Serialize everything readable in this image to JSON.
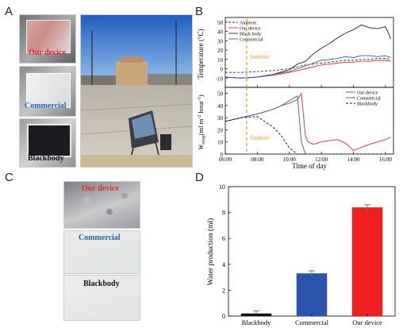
{
  "panels": {
    "a": "A",
    "b": "B",
    "c": "C",
    "d": "D"
  },
  "photos_a": [
    {
      "label": "Our device",
      "color": "#e8262a"
    },
    {
      "label": "Commercial",
      "color": "#2a5bb5"
    },
    {
      "label": "Blackbody",
      "color": "#111111"
    }
  ],
  "photos_c": [
    {
      "label": "Our device",
      "color": "#e8262a"
    },
    {
      "label": "Commercial",
      "color": "#2a5bb5"
    },
    {
      "label": "Blackbody",
      "color": "#111111"
    }
  ],
  "chart_data": [
    {
      "type": "line",
      "panel": "B-top",
      "ylabel": "Temperature (°C)",
      "ylim": [
        -20,
        55
      ],
      "yticks": [
        "-10",
        "0",
        "10",
        "20",
        "30",
        "40",
        "50"
      ],
      "sunrise_label": "Sunrise",
      "sunrise_x": "07:20",
      "x": [
        "06:00",
        "07:00",
        "08:00",
        "09:00",
        "10:00",
        "10:30",
        "11:00",
        "11:30",
        "12:00",
        "12:30",
        "13:00",
        "13:30",
        "14:00",
        "14:30",
        "15:00",
        "15:30",
        "16:00",
        "16:20"
      ],
      "series": [
        {
          "name": "Ambient",
          "color": "#333333",
          "dash": "3,2",
          "values": [
            -4,
            -4,
            -3,
            -2,
            0,
            2,
            4,
            5,
            6,
            7,
            8,
            9,
            9,
            10,
            10,
            11,
            11,
            10
          ]
        },
        {
          "name": "Our device",
          "color": "#e8262a",
          "values": [
            -9,
            -10,
            -9,
            -7,
            -4,
            -2,
            0,
            2,
            4,
            5,
            6,
            7,
            7,
            8,
            8,
            9,
            9,
            8
          ]
        },
        {
          "name": "Black body",
          "color": "#222222",
          "values": [
            -9,
            -10,
            -9,
            -6,
            -1,
            5,
            8,
            16,
            22,
            27,
            33,
            38,
            42,
            47,
            44,
            43,
            45,
            32
          ]
        },
        {
          "name": "Commercial",
          "color": "#2a5bb5",
          "values": [
            -9,
            -10,
            -9,
            -6,
            -3,
            0,
            3,
            6,
            9,
            10,
            11,
            13,
            12,
            14,
            14,
            13,
            14,
            12
          ]
        }
      ]
    },
    {
      "type": "line",
      "panel": "B-bottom",
      "ylabel": "W",
      "ylabel_sub": "evap",
      "ylabel_tail": "(ml m",
      "ylabel_sup": "-2",
      "ylabel_end": " hour",
      "ylabel_sup2": "-1",
      "ylabel_close": ")",
      "xlabel": "Time of day",
      "ylim": [
        0,
        55
      ],
      "yticks": [
        "0",
        "10",
        "20",
        "30",
        "40",
        "50"
      ],
      "xticks": [
        "06:00",
        "08:00",
        "10:00",
        "12:00",
        "14:00",
        "16:00"
      ],
      "sunrise_label": "Sunrise",
      "x": [
        "06:00",
        "07:00",
        "08:00",
        "09:00",
        "09:30",
        "10:00",
        "10:30",
        "10:45",
        "11:00",
        "11:10",
        "11:30",
        "12:00",
        "13:00",
        "13:30",
        "14:00",
        "15:00",
        "16:00",
        "16:20"
      ],
      "series": [
        {
          "name": "Our device",
          "color": "#e8262a",
          "values": [
            27,
            30,
            33,
            37,
            40,
            42,
            45,
            50,
            15,
            10,
            8,
            10,
            12,
            9,
            3,
            8,
            12,
            14
          ]
        },
        {
          "name": "Commercial",
          "color": "#2a5bb5",
          "values": [
            27,
            30,
            33,
            37,
            40,
            44,
            48,
            10,
            0,
            0,
            0,
            0,
            0,
            0,
            0,
            0,
            0,
            0
          ]
        },
        {
          "name": "Blackbody",
          "color": "#111111",
          "dash": "3,2",
          "values": [
            27,
            30,
            31,
            22,
            15,
            5,
            0,
            0,
            0,
            0,
            0,
            0,
            0,
            0,
            0,
            0,
            0,
            0
          ]
        }
      ]
    },
    {
      "type": "bar",
      "panel": "D",
      "ylabel": "Water production (ml)",
      "ylim": [
        0,
        10
      ],
      "yticks": [
        "0",
        "2",
        "4",
        "6",
        "8",
        "10"
      ],
      "categories": [
        "Blackbody",
        "Commercial",
        "Our device"
      ],
      "values": [
        0.2,
        3.3,
        8.4
      ],
      "errors": [
        0.2,
        0.2,
        0.2
      ],
      "colors": [
        "#111111",
        "#2a55ad",
        "#f02020"
      ],
      "error_color": "#1fb31f"
    }
  ]
}
